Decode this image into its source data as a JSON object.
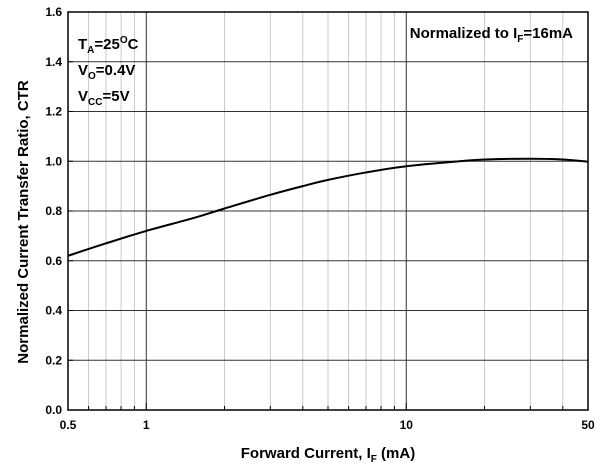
{
  "chart_data": {
    "type": "line",
    "x_scale": "log",
    "xlim": [
      0.5,
      50
    ],
    "ylim": [
      0.0,
      1.6
    ],
    "x_major_ticks": [
      0.5,
      1,
      10,
      50
    ],
    "x_tick_labels": [
      "0.5",
      "1",
      "10",
      "50"
    ],
    "y_ticks": [
      0.0,
      0.2,
      0.4,
      0.6,
      0.8,
      1.0,
      1.2,
      1.4,
      1.6
    ],
    "y_tick_labels": [
      "0.0",
      "0.2",
      "0.4",
      "0.6",
      "0.8",
      "1.0",
      "1.2",
      "1.4",
      "1.6"
    ],
    "grid": true,
    "xlabel": {
      "main": "Forward Current, I",
      "sub": "F",
      "tail": " (mA)"
    },
    "ylabel": "Normalized Current Transfer Ratio, CTR",
    "annotation_right": {
      "main": "Normalized to I",
      "sub": "F",
      "tail": "=16mA"
    },
    "conditions": [
      {
        "main": "T",
        "sub": "A",
        "tail": "=25",
        "sup": "O",
        "tail2": "C"
      },
      {
        "main": "V",
        "sub": "O",
        "tail": "=0.4V",
        "sup": "",
        "tail2": ""
      },
      {
        "main": "V",
        "sub": "CC",
        "tail": "=5V",
        "sup": "",
        "tail2": ""
      }
    ],
    "series": [
      {
        "x": [
          0.5,
          0.7,
          1,
          1.5,
          2,
          3,
          4,
          5,
          7,
          10,
          16,
          20,
          30,
          40,
          50
        ],
        "y": [
          0.62,
          0.67,
          0.72,
          0.77,
          0.81,
          0.865,
          0.9,
          0.925,
          0.955,
          0.98,
          1.0,
          1.007,
          1.01,
          1.007,
          0.998
        ]
      }
    ]
  }
}
